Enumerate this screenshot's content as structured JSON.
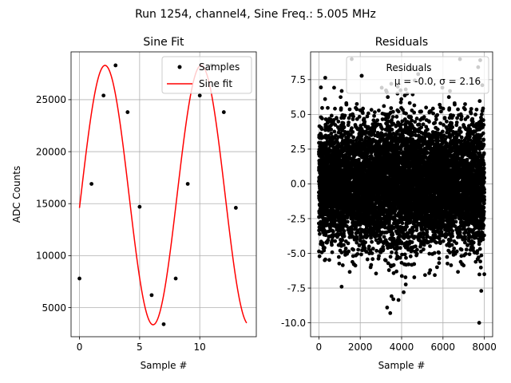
{
  "figure": {
    "suptitle": "Run 1254, channel4, Sine Freq.: 5.005 MHz"
  },
  "chart_data": [
    {
      "type": "scatter",
      "title": "Sine Fit",
      "xlabel": "Sample #",
      "ylabel": "ADC Counts",
      "xlim": [
        -0.7,
        14.7
      ],
      "ylim": [
        2200,
        29600
      ],
      "xticks": [
        0,
        5,
        10
      ],
      "yticks": [
        5000,
        10000,
        15000,
        20000,
        25000
      ],
      "grid": true,
      "legend_position": "top-right",
      "series": [
        {
          "name": "Samples",
          "kind": "points",
          "color": "#000000",
          "x": [
            0,
            1,
            2,
            3,
            4,
            5,
            6,
            7,
            8,
            9,
            10,
            11,
            12,
            13
          ],
          "y": [
            7800,
            16900,
            25400,
            28300,
            23800,
            14700,
            6200,
            3400,
            7800,
            16900,
            25400,
            28300,
            23800,
            14600
          ]
        },
        {
          "name": "Sine fit",
          "kind": "line",
          "color": "#ff0000",
          "model": {
            "offset": 15825,
            "amplitude": 12475,
            "period": 7.99,
            "phase": -0.0993,
            "x_start": 0,
            "x_end": 13.9
          }
        }
      ]
    },
    {
      "type": "scatter",
      "title": "Residuals",
      "xlabel": "Sample #",
      "ylabel": "",
      "xlim": [
        -400,
        8400
      ],
      "ylim": [
        -11,
        9.5
      ],
      "xticks": [
        0,
        2000,
        4000,
        6000,
        8000
      ],
      "yticks": [
        -10.0,
        -7.5,
        -5.0,
        -2.5,
        0.0,
        2.5,
        5.0,
        7.5
      ],
      "grid": true,
      "legend_position": "top-right",
      "legend_lines": [
        "Residuals",
        "μ = -0.0, σ = 2.16"
      ],
      "series": [
        {
          "name": "Residuals",
          "kind": "points",
          "color": "#000000",
          "n_points": 8000,
          "mean": -0.0,
          "std": 2.16,
          "x_range": [
            0,
            7999
          ],
          "notable_points": [
            {
              "x": 100,
              "y": 4.8
            },
            {
              "x": 300,
              "y": 6.1
            },
            {
              "x": 1100,
              "y": -7.4
            },
            {
              "x": 3300,
              "y": -8.9
            },
            {
              "x": 3450,
              "y": -9.3
            },
            {
              "x": 3600,
              "y": -8.3
            },
            {
              "x": 4100,
              "y": -7.8
            },
            {
              "x": 3800,
              "y": 6.5
            },
            {
              "x": 4200,
              "y": 6.8
            },
            {
              "x": 7700,
              "y": 8.4
            },
            {
              "x": 7800,
              "y": 8.9
            },
            {
              "x": 7850,
              "y": -7.7
            },
            {
              "x": 7750,
              "y": -10.0
            },
            {
              "x": 7900,
              "y": 7.1
            },
            {
              "x": 2000,
              "y": 5.3
            },
            {
              "x": 2500,
              "y": -6.0
            },
            {
              "x": 3500,
              "y": 7.2
            }
          ]
        }
      ]
    }
  ]
}
